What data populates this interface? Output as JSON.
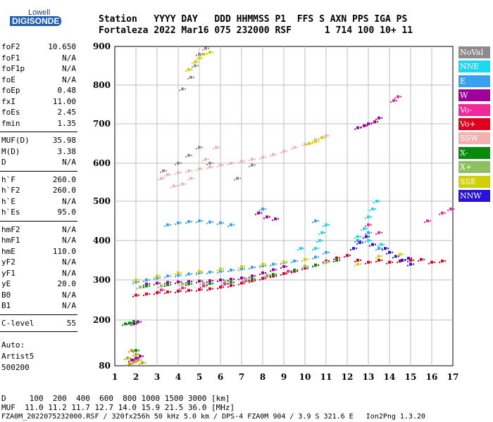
{
  "logo": {
    "line1": "Lowell",
    "line2": "DIGISONDE"
  },
  "header": {
    "line1": "Station   YYYY DAY   DDD HHMMSS P1  FFS S AXN PPS IGA PS",
    "line2": "Fortaleza 2022 Mar16 075 232000 RSF      1 714 100 10+ 11"
  },
  "params": [
    {
      "group": [
        {
          "label": "foF2",
          "value": "10.650"
        },
        {
          "label": "foF1",
          "value": "N/A"
        },
        {
          "label": "foF1p",
          "value": "N/A"
        },
        {
          "label": "foE",
          "value": "N/A"
        },
        {
          "label": "foEp",
          "value": "0.48"
        },
        {
          "label": "fxI",
          "value": "11.00"
        },
        {
          "label": "foEs",
          "value": "2.45"
        },
        {
          "label": "fmin",
          "value": "1.35"
        }
      ]
    },
    {
      "group": [
        {
          "label": "MUF(D)",
          "value": "35.98"
        },
        {
          "label": "M(D)",
          "value": "3.38"
        },
        {
          "label": "D",
          "value": "N/A"
        }
      ]
    },
    {
      "group": [
        {
          "label": "h`F",
          "value": "260.0"
        },
        {
          "label": "h`F2",
          "value": "260.0"
        },
        {
          "label": "h`E",
          "value": "N/A"
        },
        {
          "label": "h`Es",
          "value": "95.0"
        }
      ]
    },
    {
      "group": [
        {
          "label": "hmF2",
          "value": "N/A"
        },
        {
          "label": "hmF1",
          "value": "N/A"
        },
        {
          "label": "hmE",
          "value": "110.0"
        },
        {
          "label": "yF2",
          "value": "N/A"
        },
        {
          "label": "yF1",
          "value": "N/A"
        },
        {
          "label": "yE",
          "value": "20.0"
        },
        {
          "label": "B0",
          "value": "N/A"
        },
        {
          "label": "B1",
          "value": "N/A"
        }
      ]
    },
    {
      "group": [
        {
          "label": "C-level",
          "value": "55"
        }
      ]
    }
  ],
  "autoscale": {
    "line1": "Auto:",
    "line2": "Artist5",
    "line3": "500200"
  },
  "legend": [
    {
      "label": "NoVal",
      "color": "#8c8c8c"
    },
    {
      "label": "NNE",
      "color": "#19d9f2"
    },
    {
      "label": "E",
      "color": "#3aa0f0"
    },
    {
      "label": "W",
      "color": "#a0009c"
    },
    {
      "label": "Vo-",
      "color": "#f0289a"
    },
    {
      "label": "Vo+",
      "color": "#e0001e"
    },
    {
      "label": "SSW",
      "color": "#f4b0b0"
    },
    {
      "label": "X-",
      "color": "#0a8a0a"
    },
    {
      "label": "X+",
      "color": "#8cc060"
    },
    {
      "label": "SSE",
      "color": "#d0d000"
    },
    {
      "label": "NNW",
      "color": "#2a10d8"
    }
  ],
  "footer": {
    "line1": "D     100  200  400  600  800 1000 1500 3000 [km]",
    "line2": "MUF  11.0 11.2 11.7 12.7 14.0 15.9 21.5 36.0 [MHz]",
    "line3": "FZA0M_2022075232000.RSF / 320fx256h 50 kHz 5.0 km / DPS-4 FZA0M 904 / 3.9 S 321.6 E   Ion2Png 1.3.20"
  },
  "chart_data": {
    "type": "scatter",
    "x_ticks": [
      "1",
      "2",
      "3",
      "4",
      "5",
      "6",
      "7",
      "8",
      "9",
      "10",
      "11",
      "12",
      "13",
      "14",
      "15",
      "16",
      "17"
    ],
    "y_ticks": [
      "80",
      "200",
      "300",
      "400",
      "500",
      "600",
      "700",
      "800",
      "900"
    ],
    "xlim": [
      1,
      17
    ],
    "ylim": [
      80,
      900
    ],
    "grid": true,
    "legend_position": "right",
    "series": [
      {
        "color": "#c0a000",
        "points": [
          [
            1.7,
            85
          ],
          [
            1.9,
            90
          ],
          [
            2.1,
            95
          ],
          [
            2.3,
            88
          ],
          [
            1.6,
            100
          ],
          [
            2.0,
            110
          ],
          [
            1.8,
            120
          ]
        ]
      },
      {
        "color": "#a0009c",
        "points": [
          [
            1.8,
            95
          ],
          [
            2.0,
            100
          ],
          [
            2.2,
            105
          ],
          [
            1.9,
            190
          ],
          [
            2.1,
            195
          ]
        ]
      },
      {
        "color": "#0a8a0a",
        "points": [
          [
            1.5,
            190
          ],
          [
            1.7,
            192
          ],
          [
            1.9,
            196
          ],
          [
            2.0,
            120
          ]
        ]
      },
      {
        "color": "#e0001e",
        "points": [
          [
            2.0,
            262
          ],
          [
            2.5,
            265
          ],
          [
            3.0,
            268
          ],
          [
            3.5,
            270
          ],
          [
            4.0,
            272
          ],
          [
            4.5,
            274
          ],
          [
            5.0,
            276
          ],
          [
            5.5,
            278
          ],
          [
            6.0,
            282
          ],
          [
            6.5,
            286
          ],
          [
            7.0,
            292
          ],
          [
            7.5,
            298
          ],
          [
            8.0,
            304
          ],
          [
            8.5,
            310
          ],
          [
            9.0,
            316
          ],
          [
            9.5,
            322
          ],
          [
            10.0,
            330
          ],
          [
            10.5,
            338
          ],
          [
            11.0,
            348
          ],
          [
            11.5,
            356
          ],
          [
            12.0,
            362
          ],
          [
            12.5,
            350
          ],
          [
            13.0,
            345
          ],
          [
            13.5,
            350
          ],
          [
            14.0,
            345
          ],
          [
            14.5,
            348
          ],
          [
            15.0,
            350
          ],
          [
            15.5,
            352
          ],
          [
            16.0,
            345
          ],
          [
            16.5,
            348
          ]
        ]
      },
      {
        "color": "#3aa0f0",
        "points": [
          [
            2.0,
            295
          ],
          [
            2.5,
            300
          ],
          [
            3.0,
            305
          ],
          [
            3.5,
            310
          ],
          [
            4.0,
            312
          ],
          [
            4.5,
            315
          ],
          [
            5.0,
            318
          ],
          [
            5.5,
            320
          ],
          [
            6.0,
            322
          ],
          [
            6.5,
            325
          ],
          [
            7.0,
            328
          ],
          [
            7.5,
            332
          ],
          [
            8.0,
            336
          ],
          [
            8.5,
            340
          ],
          [
            9.0,
            344
          ],
          [
            9.5,
            348
          ],
          [
            10.0,
            352
          ],
          [
            10.5,
            358
          ],
          [
            11.0,
            370
          ],
          [
            12.5,
            400
          ],
          [
            13.0,
            420
          ],
          [
            13.5,
            380
          ],
          [
            3.5,
            440
          ],
          [
            4.0,
            445
          ],
          [
            4.5,
            448
          ],
          [
            5.0,
            450
          ],
          [
            5.5,
            447
          ],
          [
            6.0,
            445
          ],
          [
            6.5,
            440
          ],
          [
            8.0,
            480
          ],
          [
            10.5,
            450
          ],
          [
            11.0,
            440
          ]
        ]
      },
      {
        "color": "#19d9f2",
        "points": [
          [
            10.5,
            380
          ],
          [
            10.7,
            400
          ],
          [
            10.8,
            420
          ],
          [
            11.0,
            440
          ],
          [
            12.5,
            410
          ],
          [
            12.8,
            430
          ],
          [
            13.0,
            460
          ],
          [
            13.2,
            480
          ],
          [
            13.4,
            500
          ],
          [
            13.0,
            400
          ],
          [
            13.6,
            390
          ],
          [
            9.8,
            380
          ]
        ]
      },
      {
        "color": "#a0009c",
        "points": [
          [
            2.5,
            290
          ],
          [
            3.0,
            292
          ],
          [
            3.5,
            294
          ],
          [
            4.0,
            295
          ],
          [
            4.5,
            296
          ],
          [
            5.0,
            297
          ],
          [
            5.5,
            298
          ],
          [
            6.0,
            300
          ],
          [
            6.5,
            302
          ],
          [
            7.0,
            305
          ],
          [
            7.5,
            310
          ],
          [
            8.0,
            318
          ],
          [
            8.5,
            326
          ],
          [
            9.0,
            334
          ],
          [
            12.5,
            690
          ],
          [
            12.8,
            695
          ],
          [
            13.0,
            700
          ],
          [
            13.3,
            705
          ],
          [
            13.5,
            715
          ],
          [
            7.8,
            470
          ],
          [
            8.2,
            460
          ],
          [
            8.6,
            455
          ]
        ]
      },
      {
        "color": "#2a10d8",
        "points": [
          [
            12.3,
            380
          ],
          [
            12.6,
            395
          ],
          [
            12.9,
            410
          ],
          [
            13.2,
            390
          ],
          [
            14.0,
            370
          ],
          [
            14.3,
            360
          ],
          [
            14.6,
            350
          ],
          [
            14.9,
            355
          ],
          [
            15.0,
            340
          ],
          [
            13.8,
            380
          ]
        ]
      },
      {
        "color": "#f0289a",
        "points": [
          [
            3.2,
            275
          ],
          [
            4.2,
            280
          ],
          [
            5.2,
            285
          ],
          [
            6.2,
            290
          ],
          [
            7.2,
            298
          ],
          [
            8.2,
            310
          ],
          [
            9.2,
            322
          ],
          [
            13.0,
            440
          ],
          [
            13.5,
            420
          ],
          [
            14.2,
            760
          ],
          [
            14.4,
            770
          ],
          [
            15.8,
            450
          ],
          [
            16.5,
            470
          ],
          [
            16.9,
            480
          ]
        ]
      },
      {
        "color": "#f4b0b0",
        "points": [
          [
            3.2,
            560
          ],
          [
            3.5,
            570
          ],
          [
            4.0,
            575
          ],
          [
            4.5,
            580
          ],
          [
            5.0,
            585
          ],
          [
            5.5,
            590
          ],
          [
            6.0,
            595
          ],
          [
            6.5,
            600
          ],
          [
            7.0,
            605
          ],
          [
            7.5,
            610
          ],
          [
            8.0,
            615
          ],
          [
            8.5,
            622
          ],
          [
            9.0,
            630
          ],
          [
            9.5,
            640
          ],
          [
            10.0,
            648
          ],
          [
            10.5,
            660
          ],
          [
            11.0,
            670
          ],
          [
            3.8,
            540
          ],
          [
            4.2,
            545
          ],
          [
            4.6,
            560
          ],
          [
            5.3,
            610
          ],
          [
            5.8,
            640
          ]
        ]
      },
      {
        "color": "#d0d000",
        "points": [
          [
            2.0,
            300
          ],
          [
            3.0,
            310
          ],
          [
            4.0,
            318
          ],
          [
            5.0,
            322
          ],
          [
            6.0,
            328
          ],
          [
            7.0,
            334
          ],
          [
            8.0,
            340
          ],
          [
            9.0,
            346
          ],
          [
            10.0,
            352
          ],
          [
            10.2,
            650
          ],
          [
            10.5,
            655
          ],
          [
            10.8,
            665
          ],
          [
            4.5,
            840
          ],
          [
            4.8,
            860
          ],
          [
            5.0,
            870
          ],
          [
            5.2,
            880
          ],
          [
            5.5,
            885
          ],
          [
            12.5,
            340
          ],
          [
            13.5,
            360
          ],
          [
            14.5,
            365
          ]
        ]
      },
      {
        "color": "#8cc060",
        "points": [
          [
            2.2,
            282
          ],
          [
            3.2,
            285
          ],
          [
            4.2,
            290
          ],
          [
            5.2,
            292
          ],
          [
            6.2,
            296
          ],
          [
            7.2,
            302
          ],
          [
            8.2,
            312
          ],
          [
            10.0,
            335
          ],
          [
            11.0,
            345
          ]
        ]
      },
      {
        "color": "#0a8a0a",
        "points": [
          [
            2.5,
            285
          ],
          [
            3.5,
            288
          ],
          [
            4.5,
            290
          ],
          [
            5.5,
            291
          ],
          [
            6.5,
            294
          ],
          [
            7.5,
            302
          ],
          [
            8.5,
            314
          ],
          [
            9.5,
            325
          ],
          [
            10.5,
            337
          ],
          [
            11.5,
            350
          ]
        ]
      },
      {
        "color": "#8c8c8c",
        "points": [
          [
            3.3,
            580
          ],
          [
            4.0,
            600
          ],
          [
            4.5,
            620
          ],
          [
            5.0,
            640
          ],
          [
            5.5,
            600
          ],
          [
            4.2,
            790
          ],
          [
            4.6,
            820
          ],
          [
            4.8,
            850
          ],
          [
            5.0,
            880
          ],
          [
            5.3,
            895
          ],
          [
            6.8,
            560
          ],
          [
            7.5,
            595
          ]
        ]
      }
    ]
  }
}
